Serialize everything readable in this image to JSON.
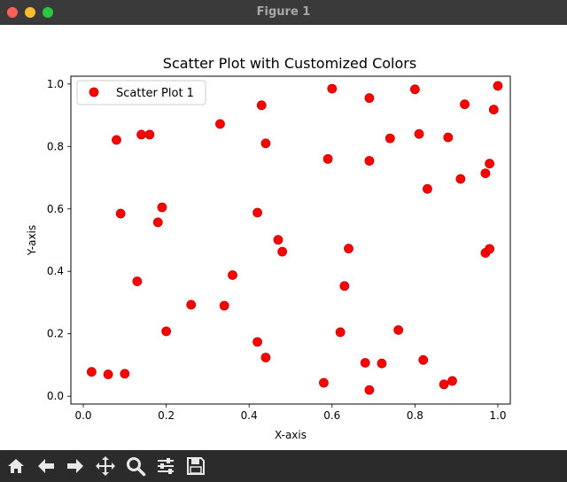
{
  "window": {
    "title": "Figure 1"
  },
  "toolbar": {
    "buttons": [
      {
        "name": "home-button",
        "icon": "home-icon"
      },
      {
        "name": "back-button",
        "icon": "arrow-left-icon"
      },
      {
        "name": "forward-button",
        "icon": "arrow-right-icon"
      },
      {
        "name": "pan-button",
        "icon": "move-icon"
      },
      {
        "name": "zoom-button",
        "icon": "magnifier-icon"
      },
      {
        "name": "configure-subplots-button",
        "icon": "sliders-icon"
      },
      {
        "name": "save-button",
        "icon": "floppy-disk-icon"
      }
    ]
  },
  "chart_data": {
    "type": "scatter",
    "title": "Scatter Plot with Customized Colors",
    "xlabel": "X-axis",
    "ylabel": "Y-axis",
    "xlim": [
      -0.03,
      1.03
    ],
    "ylim": [
      -0.025,
      1.025
    ],
    "xticks": [
      "0.0",
      "0.2",
      "0.4",
      "0.6",
      "0.8",
      "1.0"
    ],
    "yticks": [
      "0.0",
      "0.2",
      "0.4",
      "0.6",
      "0.8",
      "1.0"
    ],
    "grid": false,
    "legend_position": "upper-left",
    "series": [
      {
        "name": "Scatter Plot 1",
        "color": "#ff0000",
        "edge_color": "#c00000",
        "points": [
          [
            0.02,
            0.078
          ],
          [
            0.06,
            0.07
          ],
          [
            0.1,
            0.072
          ],
          [
            0.13,
            0.368
          ],
          [
            0.08,
            0.821
          ],
          [
            0.09,
            0.585
          ],
          [
            0.14,
            0.838
          ],
          [
            0.16,
            0.838
          ],
          [
            0.18,
            0.557
          ],
          [
            0.19,
            0.605
          ],
          [
            0.2,
            0.208
          ],
          [
            0.26,
            0.293
          ],
          [
            0.33,
            0.872
          ],
          [
            0.34,
            0.29
          ],
          [
            0.36,
            0.388
          ],
          [
            0.42,
            0.174
          ],
          [
            0.42,
            0.588
          ],
          [
            0.43,
            0.932
          ],
          [
            0.44,
            0.81
          ],
          [
            0.44,
            0.124
          ],
          [
            0.47,
            0.501
          ],
          [
            0.48,
            0.463
          ],
          [
            0.58,
            0.043
          ],
          [
            0.59,
            0.76
          ],
          [
            0.6,
            0.985
          ],
          [
            0.62,
            0.205
          ],
          [
            0.63,
            0.353
          ],
          [
            0.64,
            0.473
          ],
          [
            0.68,
            0.107
          ],
          [
            0.69,
            0.02
          ],
          [
            0.69,
            0.754
          ],
          [
            0.69,
            0.955
          ],
          [
            0.72,
            0.105
          ],
          [
            0.74,
            0.826
          ],
          [
            0.76,
            0.212
          ],
          [
            0.8,
            0.983
          ],
          [
            0.81,
            0.84
          ],
          [
            0.82,
            0.116
          ],
          [
            0.83,
            0.664
          ],
          [
            0.87,
            0.038
          ],
          [
            0.88,
            0.829
          ],
          [
            0.89,
            0.049
          ],
          [
            0.91,
            0.696
          ],
          [
            0.92,
            0.935
          ],
          [
            0.97,
            0.459
          ],
          [
            0.97,
            0.714
          ],
          [
            0.98,
            0.472
          ],
          [
            0.98,
            0.745
          ],
          [
            0.99,
            0.918
          ],
          [
            1.0,
            0.994
          ]
        ]
      }
    ]
  }
}
